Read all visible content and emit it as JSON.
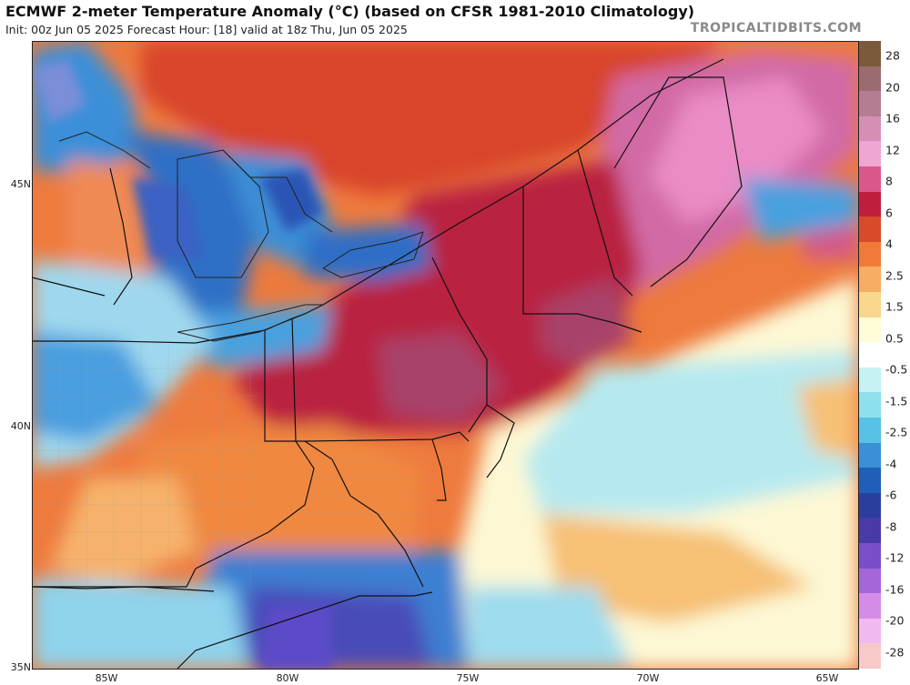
{
  "header": {
    "title": "ECMWF 2-meter Temperature Anomaly (°C) (based on CFSR 1981-2010 Climatology)",
    "subtitle": "Init: 00z Jun 05 2025   Forecast Hour: [18]   valid at 18z Thu, Jun 05 2025",
    "brand": "TROPICALTIDBITS.COM"
  },
  "axes": {
    "lat_labels": [
      "45N",
      "40N",
      "35N"
    ],
    "lon_labels": [
      "85W",
      "80W",
      "75W",
      "70W",
      "65W"
    ]
  },
  "colorbar": {
    "labels": [
      "28",
      "20",
      "16",
      "12",
      "8",
      "6",
      "4",
      "2.5",
      "1.5",
      "0.5",
      "-0.5",
      "-1.5",
      "-2.5",
      "-4",
      "-6",
      "-8",
      "-12",
      "-16",
      "-20",
      "-28"
    ],
    "colors": [
      "#7b5a3c",
      "#9b6b6f",
      "#b57d93",
      "#d58fb5",
      "#f0a6d2",
      "#d9578a",
      "#c01f3c",
      "#d94a2a",
      "#f07a3a",
      "#f7ad62",
      "#fad68e",
      "#fffcd8",
      "#ffffff",
      "#c6f2f4",
      "#8ee0ec",
      "#58c1e6",
      "#3a8fd6",
      "#1f5fb7",
      "#2a3f9d",
      "#4a3aa8",
      "#7a4ec8",
      "#a466d8",
      "#d48ce6",
      "#f2b9f0",
      "#f7c9c9"
    ]
  },
  "map": {
    "field_colors": {
      "very_warm": "#d86aa9",
      "hot": "#b8234a",
      "warm": "#d94a2a",
      "mild": "#f07a3a",
      "slight": "#f7b36a",
      "neutral": "#fffcdc",
      "cool": "#a9e7ee",
      "cold": "#4aa0de",
      "very_cold": "#1f5fb7",
      "frigid": "#5a4cc0"
    }
  }
}
